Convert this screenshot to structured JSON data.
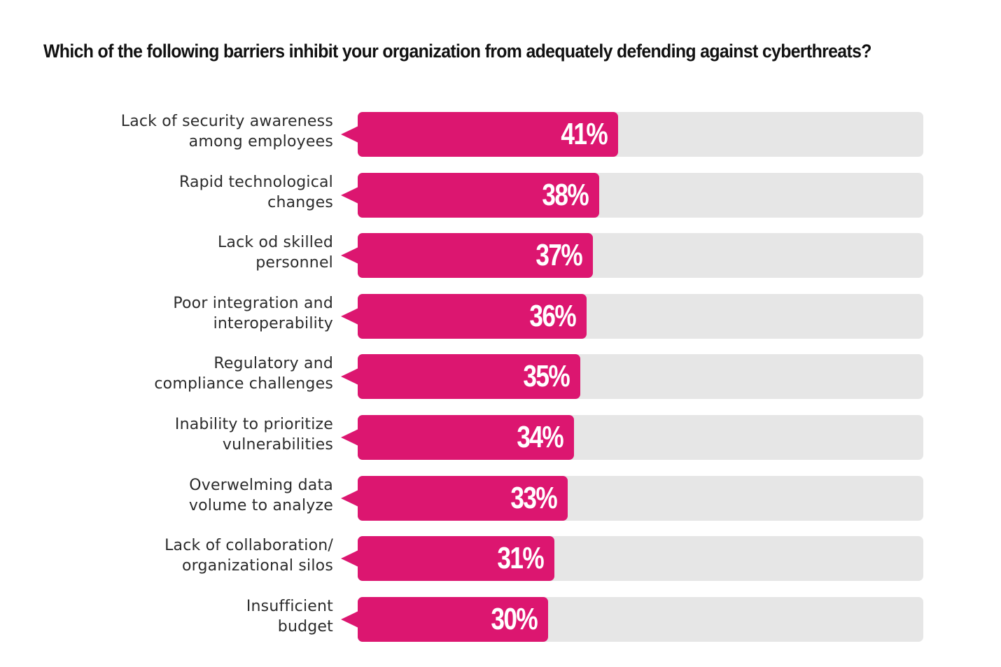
{
  "title": "Which of the following barriers inhibit your organization from adequately defending against cyberthreats?",
  "colors": {
    "bar": "#dc1670",
    "track": "#e6e6e6"
  },
  "chart_data": {
    "type": "bar",
    "orientation": "horizontal",
    "title": "Which of the following barriers inhibit your organization from adequately defending against cyberthreats?",
    "categories": [
      [
        "Lack of security awareness",
        "among employees"
      ],
      [
        "Rapid technological",
        "changes"
      ],
      [
        "Lack od skilled",
        "personnel"
      ],
      [
        "Poor integration and",
        "interoperability"
      ],
      [
        "Regulatory and",
        "compliance challenges"
      ],
      [
        "Inability to prioritize",
        "vulnerabilities"
      ],
      [
        "Overwelming data",
        "volume to analyze"
      ],
      [
        "Lack of collaboration/",
        "organizational silos"
      ],
      [
        "Insufficient",
        "budget"
      ]
    ],
    "values": [
      41,
      38,
      37,
      36,
      35,
      34,
      33,
      31,
      30
    ],
    "value_labels": [
      "41%",
      "38%",
      "37%",
      "36%",
      "35%",
      "34%",
      "33%",
      "31%",
      "30%"
    ],
    "unit": "%",
    "xlim": [
      0,
      100
    ],
    "grid": false,
    "legend": "none"
  }
}
